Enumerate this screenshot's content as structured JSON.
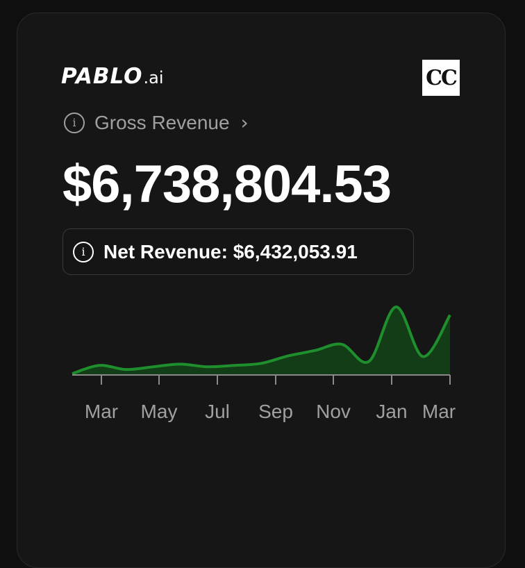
{
  "brand": {
    "logo_main": "PABLO",
    "logo_suffix": ".ai",
    "badge": "CC"
  },
  "gross": {
    "label": "Gross Revenue",
    "value": "$6,738,804.53"
  },
  "net": {
    "text": "Net Revenue: $6,432,053.91"
  },
  "icons": {
    "info": "info-icon",
    "chevron": "chevron-right-icon"
  },
  "colors": {
    "line": "#1f8f2e",
    "fill": "#123d17",
    "axis": "#8a8a8a"
  },
  "chart_data": {
    "type": "area",
    "x_ticks": [
      "Mar",
      "May",
      "Jul",
      "Sep",
      "Nov",
      "Jan",
      "Mar"
    ],
    "values": [
      2,
      14,
      8,
      12,
      16,
      12,
      14,
      17,
      28,
      36,
      45,
      20,
      100,
      27,
      88
    ]
  }
}
